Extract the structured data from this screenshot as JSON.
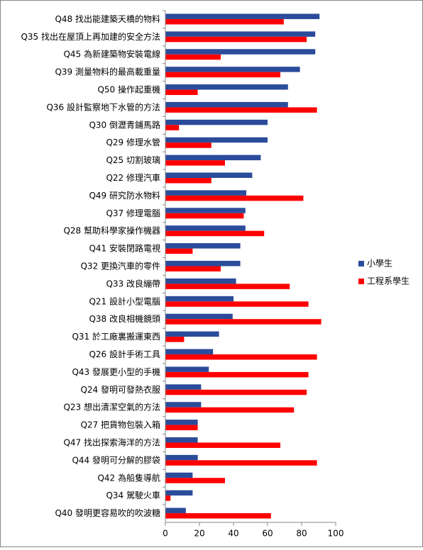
{
  "chart_data": {
    "type": "hbar",
    "categories": [
      "Q48 找出能建築天橋的物料",
      "Q35 找出在屋頂上再加建的安全方法",
      "Q45 為新建築物安裝電線",
      "Q39 測量物料的最高載重量",
      "Q50 操作起重機",
      "Q36 設計監察地下水管的方法",
      "Q30 倒瀝青鋪馬路",
      "Q29  修理水管",
      "Q25  切割玻璃",
      "Q22 修理汽車",
      "Q49 研究防水物料",
      "Q37 修理電腦",
      "Q28 幫助科學家操作機器",
      "Q41 安裝閉路電視",
      "Q32 更換汽車的零件",
      "Q33  改良繃帶",
      "Q21 設計小型電腦",
      "Q38   改良相機鏡頭",
      "Q31 於工廠裏搬運東西",
      "Q26 設計手術工具",
      "Q43 發展更小型的手機",
      "Q24 發明可發熱衣服",
      "Q23 想出清潔空氣的方法",
      "Q27 把貨物包裝入箱",
      "Q47 找出探索海洋的方法",
      "Q44 發明可分解的膠袋",
      "Q42 為船隻導航",
      "Q34 駕駛火車",
      "Q40 發明更容易吹的吹波糖"
    ],
    "series": [
      {
        "name": "小學生",
        "color": "#2b4b9b",
        "values": [
          90.5,
          88,
          88,
          79,
          72,
          72,
          60,
          60,
          56,
          51,
          47.5,
          47,
          47,
          44,
          44,
          41.5,
          40,
          39.5,
          31.5,
          28,
          25.5,
          21,
          21,
          19,
          19,
          19,
          16,
          16,
          12
        ]
      },
      {
        "name": "工程系學生",
        "color": "#ff0000",
        "values": [
          69.5,
          83,
          32.5,
          67.5,
          19,
          89,
          8,
          27,
          35,
          27,
          81,
          46,
          58,
          16,
          32.5,
          73,
          84,
          91.5,
          11,
          89,
          84,
          83,
          75.5,
          19,
          67.5,
          89,
          35,
          3,
          62
        ]
      }
    ],
    "xlim": [
      0,
      100
    ],
    "xticks": [
      0,
      20,
      40,
      60,
      80,
      100
    ],
    "legend": "right"
  }
}
